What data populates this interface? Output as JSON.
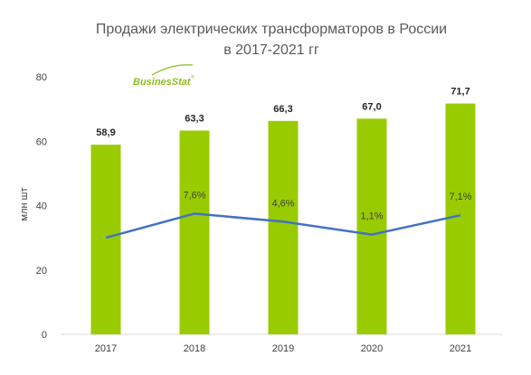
{
  "chart_data": {
    "type": "bar",
    "title_lines": [
      "Продажи электрических трансформаторов в России",
      "в 2017-2021 гг"
    ],
    "ylabel": "млн шт",
    "xlabel": "",
    "ylim": [
      0,
      80
    ],
    "yticks": [
      "0",
      "20",
      "40",
      "60",
      "80"
    ],
    "ytick_values": [
      0,
      20,
      40,
      60,
      80
    ],
    "categories": [
      "2017",
      "2018",
      "2019",
      "2020",
      "2021"
    ],
    "values": [
      58.9,
      63.3,
      66.3,
      67.0,
      71.7
    ],
    "value_labels": [
      "58,9",
      "63,3",
      "66,3",
      "67,0",
      "71,7"
    ],
    "bar_color": "#99cc00",
    "growth_line": {
      "color": "#4472c4",
      "values_pct": [
        null,
        7.6,
        4.6,
        1.1,
        7.1
      ],
      "labels": [
        "",
        "7,6%",
        "4,6%",
        "1,1%",
        "7,1%"
      ],
      "plotted_levels": [
        30,
        37.5,
        35,
        31,
        37
      ]
    },
    "grid": false
  },
  "logo": {
    "text": "BusinesStat",
    "mark": "®",
    "color": "#8cbf1f"
  }
}
